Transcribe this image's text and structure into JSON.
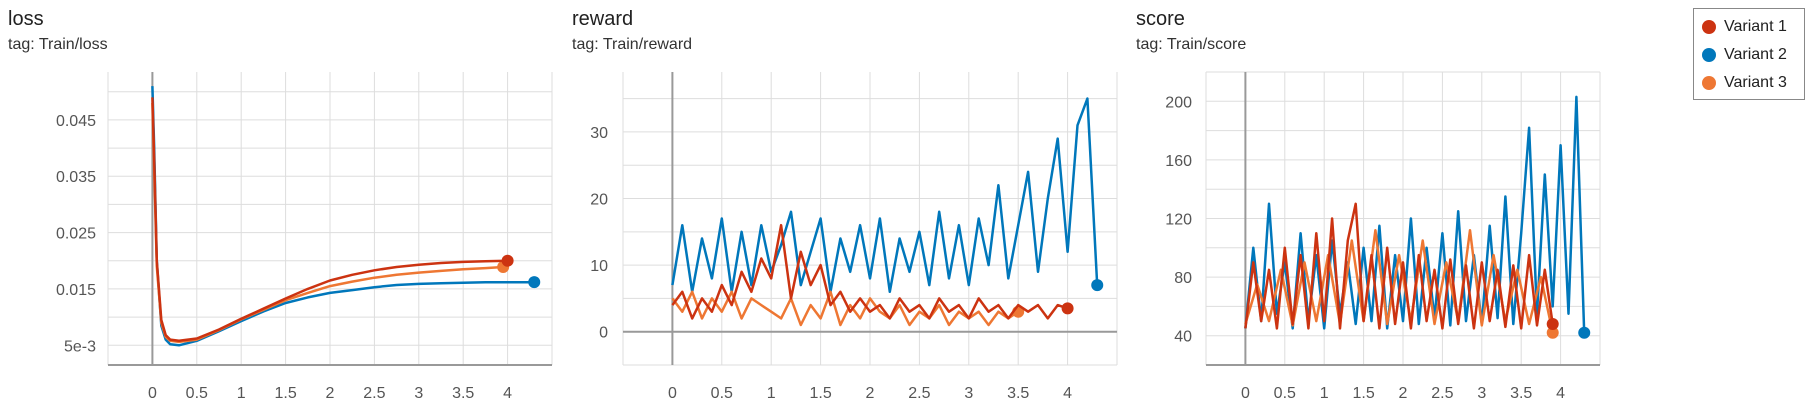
{
  "legend": {
    "items": [
      {
        "label": "Variant 1",
        "color": "#cc3311"
      },
      {
        "label": "Variant 2",
        "color": "#0077bb"
      },
      {
        "label": "Variant 3",
        "color": "#ee7733"
      }
    ]
  },
  "chart_data": [
    {
      "type": "line",
      "title": "loss",
      "subtitle": "tag: Train/loss",
      "xlabel": "",
      "ylabel": "",
      "xlim": [
        -0.5,
        4.5
      ],
      "ylim": [
        0.0015,
        0.0535
      ],
      "x_ticks": [
        0,
        0.5,
        1,
        1.5,
        2,
        2.5,
        3,
        3.5,
        4
      ],
      "x_tick_labels": [
        "0",
        "0.5",
        "1",
        "1.5",
        "2",
        "2.5",
        "3",
        "3.5",
        "4"
      ],
      "y_ticks": [
        0.005,
        0.015,
        0.025,
        0.035,
        0.045
      ],
      "y_tick_labels": [
        "5e-3",
        "0.015",
        "0.025",
        "0.035",
        "0.045"
      ],
      "grid": true,
      "series": [
        {
          "name": "Variant 2",
          "color": "#0077bb",
          "x": [
            0,
            0.02,
            0.05,
            0.1,
            0.15,
            0.2,
            0.3,
            0.5,
            0.75,
            1,
            1.25,
            1.5,
            1.75,
            2,
            2.25,
            2.5,
            2.75,
            3,
            3.25,
            3.5,
            3.75,
            4,
            4.2,
            4.3
          ],
          "y": [
            0.051,
            0.04,
            0.02,
            0.0085,
            0.006,
            0.0052,
            0.005,
            0.0058,
            0.0075,
            0.0093,
            0.011,
            0.0125,
            0.0135,
            0.0143,
            0.0148,
            0.0153,
            0.0157,
            0.0159,
            0.016,
            0.0161,
            0.0162,
            0.0162,
            0.0162,
            0.0162
          ]
        },
        {
          "name": "Variant 1",
          "color": "#cc3311",
          "x": [
            0,
            0.02,
            0.05,
            0.1,
            0.15,
            0.2,
            0.3,
            0.5,
            0.75,
            1,
            1.25,
            1.5,
            1.75,
            2,
            2.25,
            2.5,
            2.75,
            3,
            3.25,
            3.5,
            3.75,
            4
          ],
          "y": [
            0.049,
            0.038,
            0.02,
            0.0095,
            0.0068,
            0.006,
            0.0058,
            0.0062,
            0.0078,
            0.0097,
            0.0115,
            0.0133,
            0.015,
            0.0165,
            0.0175,
            0.0183,
            0.0189,
            0.0193,
            0.0196,
            0.0198,
            0.0199,
            0.02
          ]
        },
        {
          "name": "Variant 3",
          "color": "#ee7733",
          "x": [
            0,
            0.02,
            0.05,
            0.1,
            0.15,
            0.2,
            0.3,
            0.5,
            0.75,
            1,
            1.25,
            1.5,
            1.75,
            2,
            2.25,
            2.5,
            2.75,
            3,
            3.25,
            3.5,
            3.75,
            3.95
          ],
          "y": [
            0.048,
            0.036,
            0.019,
            0.009,
            0.0065,
            0.0058,
            0.0056,
            0.006,
            0.0077,
            0.0096,
            0.0113,
            0.013,
            0.0143,
            0.0155,
            0.0163,
            0.017,
            0.0175,
            0.0179,
            0.0182,
            0.0185,
            0.0187,
            0.0189
          ]
        }
      ]
    },
    {
      "type": "line",
      "title": "reward",
      "subtitle": "tag: Train/reward",
      "xlabel": "",
      "ylabel": "",
      "xlim": [
        -0.5,
        4.5
      ],
      "ylim": [
        -5,
        39
      ],
      "x_ticks": [
        0,
        0.5,
        1,
        1.5,
        2,
        2.5,
        3,
        3.5,
        4
      ],
      "x_tick_labels": [
        "0",
        "0.5",
        "1",
        "1.5",
        "2",
        "2.5",
        "3",
        "3.5",
        "4"
      ],
      "y_ticks": [
        0,
        10,
        20,
        30
      ],
      "y_tick_labels": [
        "0",
        "10",
        "20",
        "30"
      ],
      "grid": true,
      "series": [
        {
          "name": "Variant 2",
          "color": "#0077bb",
          "x": [
            0,
            0.1,
            0.2,
            0.3,
            0.4,
            0.5,
            0.6,
            0.7,
            0.8,
            0.9,
            1,
            1.1,
            1.2,
            1.3,
            1.4,
            1.5,
            1.6,
            1.7,
            1.8,
            1.9,
            2,
            2.1,
            2.2,
            2.3,
            2.4,
            2.5,
            2.6,
            2.7,
            2.8,
            2.9,
            3,
            3.1,
            3.2,
            3.3,
            3.4,
            3.5,
            3.6,
            3.7,
            3.8,
            3.9,
            4,
            4.1,
            4.2,
            4.3
          ],
          "y": [
            7,
            16,
            6,
            14,
            8,
            17,
            6,
            15,
            7,
            16,
            9,
            13,
            18,
            7,
            12,
            17,
            6,
            14,
            9,
            16,
            8,
            17,
            6,
            14,
            9,
            15,
            7,
            18,
            8,
            16,
            7,
            17,
            10,
            22,
            8,
            16,
            24,
            9,
            20,
            29,
            12,
            31,
            35,
            7
          ]
        },
        {
          "name": "Variant 1",
          "color": "#cc3311",
          "x": [
            0,
            0.1,
            0.2,
            0.3,
            0.4,
            0.5,
            0.6,
            0.7,
            0.8,
            0.9,
            1,
            1.1,
            1.2,
            1.3,
            1.4,
            1.5,
            1.6,
            1.7,
            1.8,
            1.9,
            2,
            2.1,
            2.2,
            2.3,
            2.4,
            2.5,
            2.6,
            2.7,
            2.8,
            2.9,
            3,
            3.1,
            3.2,
            3.3,
            3.4,
            3.5,
            3.6,
            3.7,
            3.8,
            3.9,
            4
          ],
          "y": [
            4,
            6,
            2,
            5,
            3,
            7,
            4,
            9,
            6,
            11,
            8,
            16,
            5,
            12,
            7,
            10,
            4,
            6,
            3,
            5,
            3,
            4,
            2,
            5,
            3,
            4,
            2,
            5,
            3,
            4,
            2,
            5,
            3,
            4,
            2,
            4,
            3,
            4,
            2,
            4,
            3.5
          ]
        },
        {
          "name": "Variant 3",
          "color": "#ee7733",
          "x": [
            0,
            0.1,
            0.2,
            0.3,
            0.4,
            0.5,
            0.6,
            0.7,
            0.8,
            0.9,
            1,
            1.1,
            1.2,
            1.3,
            1.4,
            1.5,
            1.6,
            1.7,
            1.8,
            1.9,
            2,
            2.1,
            2.2,
            2.3,
            2.4,
            2.5,
            2.6,
            2.7,
            2.8,
            2.9,
            3,
            3.1,
            3.2,
            3.3,
            3.4,
            3.5
          ],
          "y": [
            5,
            3,
            6,
            2,
            5,
            3,
            6,
            2,
            5,
            4,
            3,
            2,
            5,
            1,
            4,
            2,
            6,
            1,
            4,
            2,
            5,
            3,
            2,
            4,
            1,
            3,
            2,
            4,
            1,
            3,
            2,
            3,
            1,
            3,
            2,
            3
          ]
        }
      ]
    },
    {
      "type": "line",
      "title": "score",
      "subtitle": "tag: Train/score",
      "xlabel": "",
      "ylabel": "",
      "xlim": [
        -0.5,
        4.5
      ],
      "ylim": [
        20,
        220
      ],
      "x_ticks": [
        0,
        0.5,
        1,
        1.5,
        2,
        2.5,
        3,
        3.5,
        4
      ],
      "x_tick_labels": [
        "0",
        "0.5",
        "1",
        "1.5",
        "2",
        "2.5",
        "3",
        "3.5",
        "4"
      ],
      "y_ticks": [
        40,
        80,
        120,
        160,
        200
      ],
      "y_tick_labels": [
        "40",
        "80",
        "120",
        "160",
        "200"
      ],
      "grid": true,
      "series": [
        {
          "name": "Variant 2",
          "color": "#0077bb",
          "x": [
            0,
            0.1,
            0.2,
            0.3,
            0.4,
            0.5,
            0.6,
            0.7,
            0.8,
            0.9,
            1,
            1.1,
            1.2,
            1.3,
            1.4,
            1.5,
            1.6,
            1.7,
            1.8,
            1.9,
            2,
            2.1,
            2.2,
            2.3,
            2.4,
            2.5,
            2.6,
            2.7,
            2.8,
            2.9,
            3,
            3.1,
            3.2,
            3.3,
            3.4,
            3.5,
            3.6,
            3.7,
            3.8,
            3.9,
            4,
            4.1,
            4.2,
            4.3
          ],
          "y": [
            45,
            100,
            50,
            130,
            55,
            90,
            45,
            110,
            50,
            95,
            45,
            105,
            55,
            90,
            48,
            100,
            50,
            115,
            45,
            95,
            50,
            120,
            48,
            100,
            52,
            110,
            47,
            125,
            50,
            95,
            48,
            115,
            52,
            135,
            48,
            110,
            182,
            55,
            150,
            60,
            170,
            55,
            203,
            42
          ]
        },
        {
          "name": "Variant 1",
          "color": "#cc3311",
          "x": [
            0,
            0.1,
            0.2,
            0.3,
            0.4,
            0.5,
            0.6,
            0.7,
            0.8,
            0.9,
            1,
            1.1,
            1.2,
            1.3,
            1.4,
            1.5,
            1.6,
            1.7,
            1.8,
            1.9,
            2,
            2.1,
            2.2,
            2.3,
            2.4,
            2.5,
            2.6,
            2.7,
            2.8,
            2.9,
            3,
            3.1,
            3.2,
            3.3,
            3.4,
            3.5,
            3.6,
            3.7,
            3.8,
            3.9
          ],
          "y": [
            45,
            90,
            50,
            85,
            45,
            100,
            48,
            95,
            45,
            110,
            50,
            120,
            45,
            105,
            130,
            50,
            95,
            45,
            100,
            48,
            90,
            45,
            95,
            50,
            85,
            45,
            92,
            48,
            88,
            45,
            90,
            50,
            85,
            46,
            88,
            45,
            95,
            47,
            85,
            48
          ]
        },
        {
          "name": "Variant 3",
          "color": "#ee7733",
          "x": [
            0,
            0.15,
            0.3,
            0.45,
            0.6,
            0.75,
            0.9,
            1.05,
            1.2,
            1.35,
            1.5,
            1.65,
            1.8,
            1.95,
            2.1,
            2.25,
            2.4,
            2.55,
            2.7,
            2.85,
            3,
            3.15,
            3.3,
            3.45,
            3.6,
            3.75,
            3.9
          ],
          "y": [
            48,
            75,
            50,
            85,
            47,
            90,
            50,
            95,
            48,
            105,
            50,
            112,
            48,
            95,
            50,
            105,
            48,
            90,
            50,
            112,
            47,
            95,
            50,
            85,
            48,
            80,
            42
          ]
        }
      ]
    }
  ]
}
